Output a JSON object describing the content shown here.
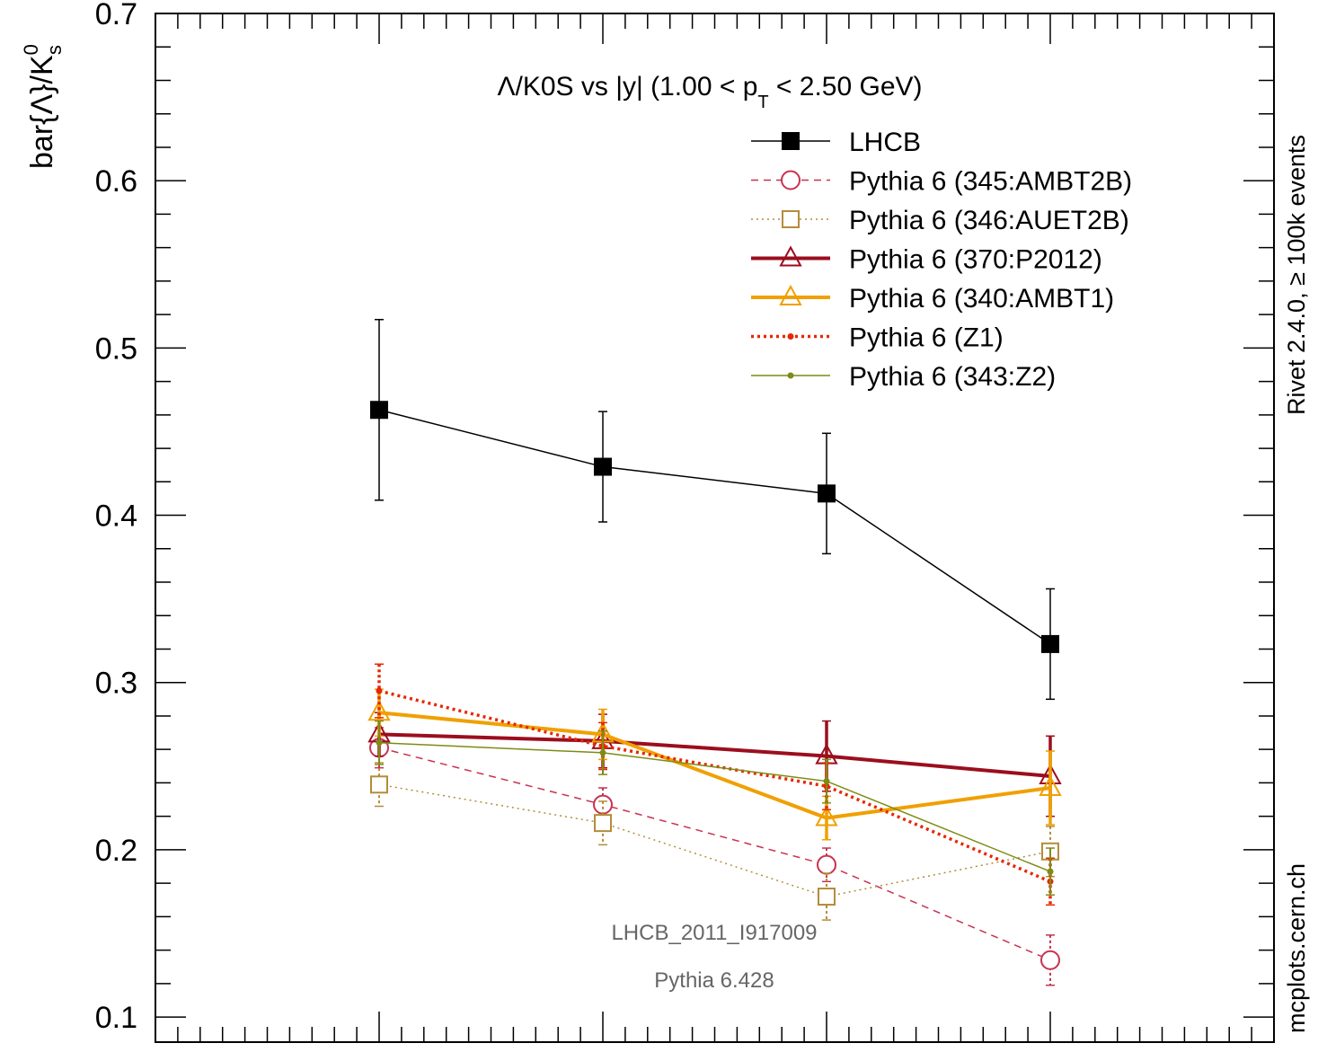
{
  "chart_data": {
    "type": "scatter",
    "title_main": "Λ/K0S vs |y| (1.00 < p",
    "title_sub": "T",
    "title_tail": " < 2.50 GeV)",
    "ylabel": "bar{Λ}/K",
    "ylabel_sup": "0",
    "ylabel_sub": "s",
    "ylim": [
      0.085,
      0.7
    ],
    "xlim": [
      2.0,
      4.5
    ],
    "yticks": [
      0.1,
      0.2,
      0.3,
      0.4,
      0.5,
      0.6,
      0.7
    ],
    "ytick_labels": [
      "0.1",
      "0.2",
      "0.3",
      "0.4",
      "0.5",
      "0.6",
      "0.7"
    ],
    "right_label_top": "Rivet 2.4.0, ≥ 100k events",
    "right_label_bottom": "mcplots.cern.ch",
    "annotation_1": "LHCB_2011_I917009",
    "annotation_2": "Pythia 6.428",
    "grid": false,
    "legend_position": "top-right",
    "x": [
      2.5,
      3.0,
      3.5,
      4.0
    ],
    "series": [
      {
        "name": "LHCB",
        "color": "#000000",
        "marker": "filled-square",
        "line": "solid-thin",
        "values": [
          0.463,
          0.429,
          0.413,
          0.323
        ],
        "err": [
          0.054,
          0.033,
          0.036,
          0.033
        ]
      },
      {
        "name": "Pythia 6 (345:AMBT2B)",
        "color": "#c83250",
        "marker": "open-circle",
        "line": "dashed",
        "values": [
          0.261,
          0.227,
          0.191,
          0.134
        ],
        "err": [
          0.012,
          0.01,
          0.01,
          0.015
        ]
      },
      {
        "name": "Pythia 6 (346:AUET2B)",
        "color": "#b48c3c",
        "marker": "open-square",
        "line": "dotted",
        "values": [
          0.239,
          0.216,
          0.172,
          0.199
        ],
        "err": [
          0.013,
          0.013,
          0.014,
          0.015
        ]
      },
      {
        "name": "Pythia 6 (370:P2012)",
        "color": "#9b0e1e",
        "marker": "open-triangle",
        "line": "solid-thick",
        "values": [
          0.269,
          0.265,
          0.256,
          0.244
        ],
        "err": [
          0.013,
          0.016,
          0.021,
          0.024
        ]
      },
      {
        "name": "Pythia 6 (340:AMBT1)",
        "color": "#f0a000",
        "marker": "open-triangle",
        "line": "solid-thick",
        "values": [
          0.282,
          0.269,
          0.219,
          0.237
        ],
        "err": [
          0.014,
          0.015,
          0.013,
          0.022
        ]
      },
      {
        "name": "Pythia 6 (Z1)",
        "color": "#e62800",
        "marker": "dot",
        "line": "dotted-thick",
        "values": [
          0.295,
          0.262,
          0.238,
          0.181
        ],
        "err": [
          0.016,
          0.014,
          0.014,
          0.014
        ]
      },
      {
        "name": "Pythia 6 (343:Z2)",
        "color": "#7d8c14",
        "marker": "dot",
        "line": "solid-thin",
        "values": [
          0.264,
          0.258,
          0.241,
          0.187
        ],
        "err": [
          0.013,
          0.013,
          0.013,
          0.014
        ]
      }
    ]
  }
}
